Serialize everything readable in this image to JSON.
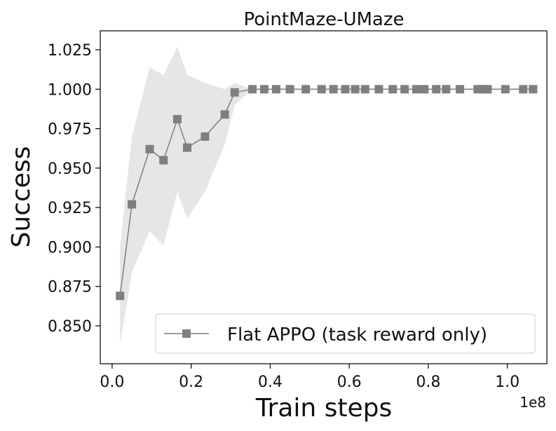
{
  "chart_data": {
    "type": "line",
    "title": "PointMaze-UMaze",
    "xlabel": "Train steps",
    "ylabel": "Success",
    "x_scale_label": "1e8",
    "xlim": [
      -0.03,
      1.1
    ],
    "ylim": [
      0.826,
      1.037
    ],
    "xticks": [
      0.0,
      0.2,
      0.4,
      0.6,
      0.8,
      1.0
    ],
    "xtick_labels": [
      "0.0",
      "0.2",
      "0.4",
      "0.6",
      "0.8",
      "1.0"
    ],
    "yticks": [
      0.85,
      0.875,
      0.9,
      0.925,
      0.95,
      0.975,
      1.0,
      1.025
    ],
    "ytick_labels": [
      "0.850",
      "0.875",
      "0.900",
      "0.925",
      "0.950",
      "0.975",
      "1.000",
      "1.025"
    ],
    "grid": false,
    "legend_position": "bottom-right",
    "series": [
      {
        "name": "Flat APPO (task reward only)",
        "color": "#7f7f7f",
        "band_color": "#e6e6e6",
        "marker": "square",
        "x": [
          0.02,
          0.05,
          0.095,
          0.13,
          0.165,
          0.19,
          0.235,
          0.285,
          0.31,
          0.355,
          0.385,
          0.415,
          0.45,
          0.49,
          0.53,
          0.56,
          0.59,
          0.615,
          0.64,
          0.675,
          0.71,
          0.74,
          0.77,
          0.79,
          0.82,
          0.845,
          0.88,
          0.925,
          0.94,
          0.95,
          0.995,
          1.04,
          1.065
        ],
        "y": [
          0.869,
          0.927,
          0.962,
          0.955,
          0.981,
          0.963,
          0.97,
          0.984,
          0.998,
          1.0,
          1.0,
          1.0,
          1.0,
          1.0,
          1.0,
          1.0,
          1.0,
          1.0,
          1.0,
          1.0,
          1.0,
          1.0,
          1.0,
          1.0,
          1.0,
          1.0,
          1.0,
          1.0,
          1.0,
          1.0,
          1.0,
          1.0,
          1.0
        ],
        "upper": [
          0.9,
          0.97,
          1.014,
          1.009,
          1.027,
          1.009,
          1.004,
          1.0,
          1.004,
          1.0,
          1.0,
          1.0,
          1.0,
          1.0,
          1.0,
          1.0,
          1.0,
          1.0,
          1.0,
          1.0,
          1.0,
          1.0,
          1.0,
          1.0,
          1.0,
          1.0,
          1.0,
          1.0,
          1.0,
          1.0,
          1.0,
          1.0,
          1.0
        ],
        "lower": [
          0.838,
          0.884,
          0.91,
          0.901,
          0.935,
          0.918,
          0.935,
          0.965,
          0.99,
          1.0,
          1.0,
          1.0,
          1.0,
          1.0,
          1.0,
          1.0,
          1.0,
          1.0,
          1.0,
          1.0,
          1.0,
          1.0,
          1.0,
          1.0,
          1.0,
          1.0,
          1.0,
          1.0,
          1.0,
          1.0,
          1.0,
          1.0,
          1.0
        ]
      }
    ]
  }
}
